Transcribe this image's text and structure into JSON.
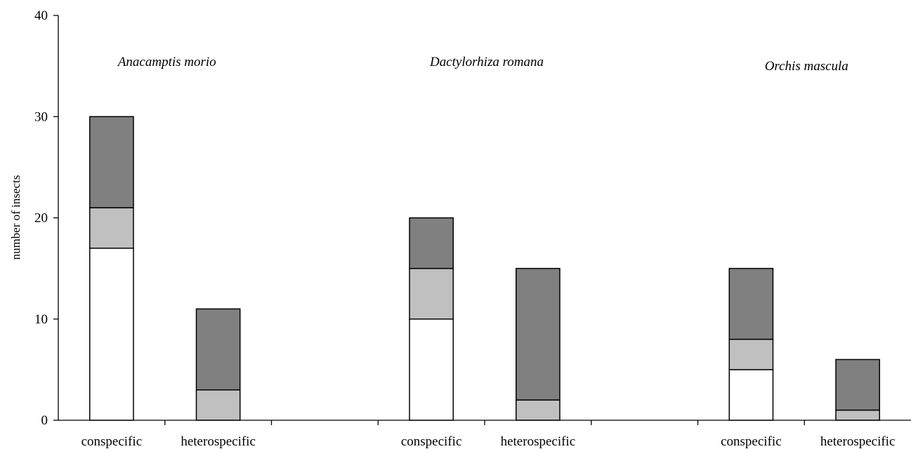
{
  "chart_data": {
    "type": "bar",
    "stacked": true,
    "title": "",
    "xlabel": "",
    "ylabel": "number of insects",
    "ylim": [
      0,
      40
    ],
    "yticks": [
      0,
      10,
      20,
      30,
      40
    ],
    "grid": false,
    "groups": [
      {
        "name": "Anacamptis morio",
        "bars": [
          {
            "category": "conspecific",
            "segments": [
              17,
              4,
              9
            ]
          },
          {
            "category": "heterospecific",
            "segments": [
              0,
              3,
              8
            ]
          }
        ]
      },
      {
        "name": "Dactylorhiza romana",
        "bars": [
          {
            "category": "conspecific",
            "segments": [
              10,
              5,
              5
            ]
          },
          {
            "category": "heterospecific",
            "segments": [
              0,
              2,
              13
            ]
          }
        ]
      },
      {
        "name": "Orchis mascula",
        "bars": [
          {
            "category": "conspecific",
            "segments": [
              5,
              3,
              7
            ]
          },
          {
            "category": "heterospecific",
            "segments": [
              0,
              1,
              5
            ]
          }
        ]
      }
    ],
    "segment_colors": [
      "#ffffff",
      "#c0c0c0",
      "#808080"
    ]
  }
}
